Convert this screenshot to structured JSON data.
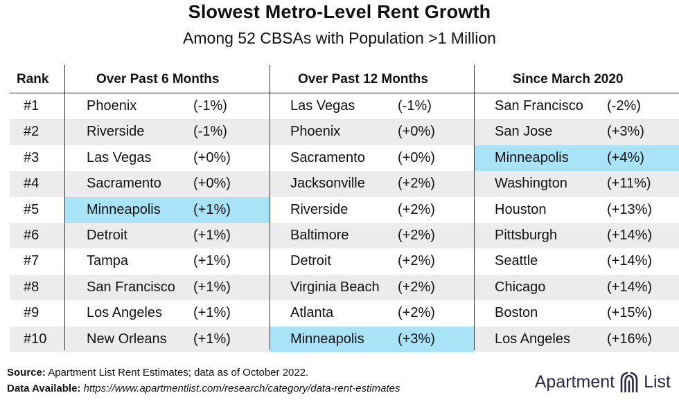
{
  "title": "Slowest Metro-Level Rent Growth",
  "subtitle": "Among 52 CBSAs with Population >1 Million",
  "headers": {
    "rank": "Rank",
    "col1": "Over Past 6 Months",
    "col2": "Over Past 12 Months",
    "col3": "Since March 2020"
  },
  "rows": [
    {
      "rank": "#1",
      "c1": {
        "city": "Phoenix",
        "val": "(-1%)"
      },
      "c2": {
        "city": "Las Vegas",
        "val": "(-1%)"
      },
      "c3": {
        "city": "San Francisco",
        "val": "(-2%)"
      }
    },
    {
      "rank": "#2",
      "c1": {
        "city": "Riverside",
        "val": "(-1%)"
      },
      "c2": {
        "city": "Phoenix",
        "val": "(+0%)"
      },
      "c3": {
        "city": "San Jose",
        "val": "(+3%)"
      }
    },
    {
      "rank": "#3",
      "c1": {
        "city": "Las Vegas",
        "val": "(+0%)"
      },
      "c2": {
        "city": "Sacramento",
        "val": "(+0%)"
      },
      "c3": {
        "city": "Minneapolis",
        "val": "(+4%)"
      }
    },
    {
      "rank": "#4",
      "c1": {
        "city": "Sacramento",
        "val": "(+0%)"
      },
      "c2": {
        "city": "Jacksonville",
        "val": "(+2%)"
      },
      "c3": {
        "city": "Washington",
        "val": "(+11%)"
      }
    },
    {
      "rank": "#5",
      "c1": {
        "city": "Minneapolis",
        "val": "(+1%)"
      },
      "c2": {
        "city": "Riverside",
        "val": "(+2%)"
      },
      "c3": {
        "city": "Houston",
        "val": "(+13%)"
      }
    },
    {
      "rank": "#6",
      "c1": {
        "city": "Detroit",
        "val": "(+1%)"
      },
      "c2": {
        "city": "Baltimore",
        "val": "(+2%)"
      },
      "c3": {
        "city": "Pittsburgh",
        "val": "(+14%)"
      }
    },
    {
      "rank": "#7",
      "c1": {
        "city": "Tampa",
        "val": "(+1%)"
      },
      "c2": {
        "city": "Detroit",
        "val": "(+2%)"
      },
      "c3": {
        "city": "Seattle",
        "val": "(+14%)"
      }
    },
    {
      "rank": "#8",
      "c1": {
        "city": "San Francisco",
        "val": "(+1%)"
      },
      "c2": {
        "city": "Virginia Beach",
        "val": "(+2%)"
      },
      "c3": {
        "city": "Chicago",
        "val": "(+14%)"
      }
    },
    {
      "rank": "#9",
      "c1": {
        "city": "Los Angeles",
        "val": "(+1%)"
      },
      "c2": {
        "city": "Atlanta",
        "val": "(+2%)"
      },
      "c3": {
        "city": "Boston",
        "val": "(+15%)"
      }
    },
    {
      "rank": "#10",
      "c1": {
        "city": "New Orleans",
        "val": "(+1%)"
      },
      "c2": {
        "city": "Minneapolis",
        "val": "(+3%)"
      },
      "c3": {
        "city": "Los Angeles",
        "val": "(+16%)"
      }
    }
  ],
  "highlight_color": "#a8e3f8",
  "highlight_city": "Minneapolis",
  "footer": {
    "source_label": "Source:",
    "source_text": "Apartment List Rent Estimates; data as of October 2022.",
    "data_label": "Data Available:",
    "data_url": "https://www.apartmentlist.com/research/category/data-rent-estimates"
  },
  "logo": {
    "word1": "Apartment",
    "word2": "List",
    "icon": "apartment-list-logo-icon",
    "color": "#2b2744"
  }
}
